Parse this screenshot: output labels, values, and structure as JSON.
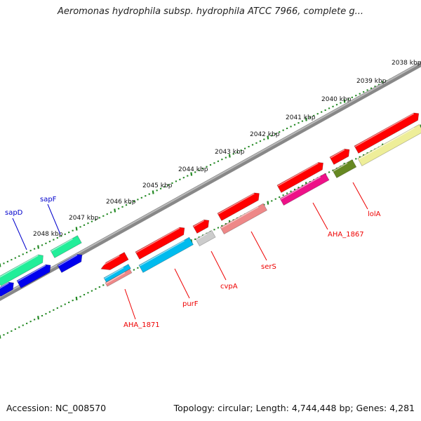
{
  "title": "Aeromonas hydrophila subsp. hydrophila ATCC 7966, complete g...",
  "footer": {
    "accession": "Accession: NC_008570",
    "stats": "Topology: circular; Length: 4,744,448 bp; Genes: 4,281"
  },
  "ruler_labels": [
    "2038 kbp",
    "2039 kbp",
    "2040 kbp",
    "2041 kbp",
    "2042 kbp",
    "2043 kbp",
    "2044 kbp",
    "2045 kbp",
    "2046 kbp",
    "2047 kbp",
    "2048 kbp"
  ],
  "genes": [
    {
      "name": "sapD",
      "color": "#0000cc"
    },
    {
      "name": "sapF",
      "color": "#0000cc"
    },
    {
      "name": "AHA_1871",
      "color": "#ee0000"
    },
    {
      "name": "purF",
      "color": "#ee0000"
    },
    {
      "name": "cvpA",
      "color": "#ee0000"
    },
    {
      "name": "serS",
      "color": "#ee0000"
    },
    {
      "name": "AHA_1867",
      "color": "#ee0000"
    },
    {
      "name": "lolA",
      "color": "#ee0000"
    }
  ],
  "feature_colors": {
    "backbone": "#888888",
    "ruler_ticks": "#228822",
    "red": "#ff0000",
    "blue": "#0000ee",
    "green_cds": "#22ee99",
    "cyan": "#00bbee",
    "pink": "#ee8888",
    "grey": "#cccccc",
    "magenta": "#ee1188",
    "olive": "#668822",
    "khaki": "#eeee99"
  }
}
